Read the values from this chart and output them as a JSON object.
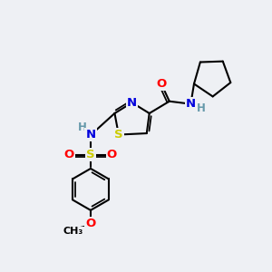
{
  "background_color": "#eef0f4",
  "bond_color": "#000000",
  "bond_width": 1.5,
  "atom_colors": {
    "C": "#000000",
    "N": "#0000dd",
    "O": "#ff0000",
    "S": "#cccc00",
    "H": "#6699aa"
  },
  "font_size": 9.5,
  "fig_width": 3.0,
  "fig_height": 3.0,
  "dpi": 100
}
